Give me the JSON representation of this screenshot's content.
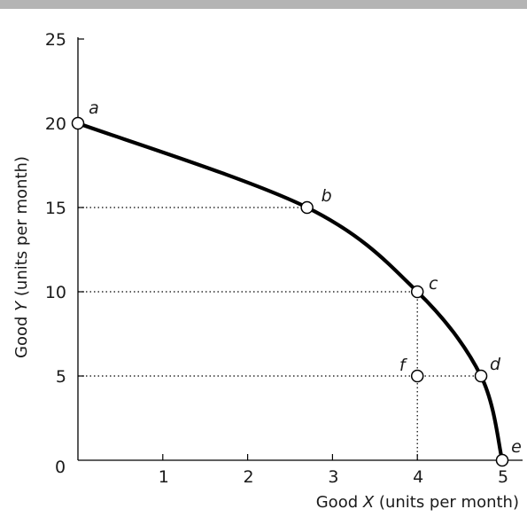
{
  "chart_data": {
    "type": "line",
    "title": "",
    "xlabel": {
      "prefix": "Good ",
      "var": "X",
      "suffix": " (units per month)"
    },
    "ylabel": {
      "prefix": "Good ",
      "var": "Y",
      "suffix": " (units per month)"
    },
    "xlim": [
      0,
      5
    ],
    "ylim": [
      0,
      25
    ],
    "x_ticks": [
      "1",
      "2",
      "3",
      "4",
      "5"
    ],
    "y_ticks": [
      "5",
      "10",
      "15",
      "20",
      "25"
    ],
    "origin_label": "0",
    "grid": false,
    "series": [
      {
        "x": [
          0,
          2.7,
          4.0,
          4.75,
          5.0
        ],
        "y": [
          20,
          15,
          10,
          5,
          0
        ],
        "color": "#000000"
      }
    ],
    "points": [
      {
        "label": "a",
        "x": 0,
        "y": 20
      },
      {
        "label": "b",
        "x": 2.7,
        "y": 15
      },
      {
        "label": "c",
        "x": 4.0,
        "y": 10
      },
      {
        "label": "d",
        "x": 4.75,
        "y": 5
      },
      {
        "label": "e",
        "x": 5.0,
        "y": 0
      },
      {
        "label": "f",
        "x": 4.0,
        "y": 5
      }
    ],
    "dotted_guides": [
      {
        "from": [
          0,
          15
        ],
        "to": [
          2.7,
          15
        ]
      },
      {
        "from": [
          0,
          10
        ],
        "to": [
          4.0,
          10
        ]
      },
      {
        "from": [
          0,
          5
        ],
        "to": [
          4.75,
          5
        ]
      },
      {
        "from": [
          4.0,
          0
        ],
        "to": [
          4.0,
          10
        ]
      }
    ]
  }
}
